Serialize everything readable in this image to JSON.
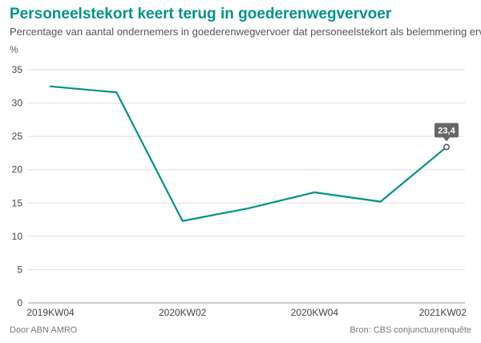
{
  "header": {
    "title": "Personeelstekort keert terug in goederenwegvervoer",
    "subtitle": "Percentage van aantal ondernemers in goederenwegvervoer dat personeelstekort als belemmering ervaart",
    "unit": "%"
  },
  "footer": {
    "source_left": "Door ABN AMRO",
    "source_right": "Bron: CBS conjunctuurenquête"
  },
  "colors": {
    "line": "#009286",
    "title": "#009286",
    "grid": "#dddddd",
    "callout_bg": "#666666"
  },
  "chart_data": {
    "type": "line",
    "x": [
      "2019KW04",
      "2020KW01",
      "2020KW02",
      "2020KW03",
      "2020KW04",
      "2021KW01",
      "2021KW02"
    ],
    "x_tick_labels": [
      "2019KW04",
      "2020KW02",
      "2020KW04",
      "2021KW02"
    ],
    "series": [
      {
        "values": [
          32.5,
          31.6,
          12.3,
          14.2,
          16.6,
          15.2,
          23.4
        ]
      }
    ],
    "ylim": [
      0,
      35
    ],
    "y_ticks": [
      0,
      5,
      10,
      15,
      20,
      25,
      30,
      35
    ],
    "grid": "horizontal",
    "annotation": {
      "x": "2021KW02",
      "value": 23.4,
      "label": "23,4"
    }
  }
}
